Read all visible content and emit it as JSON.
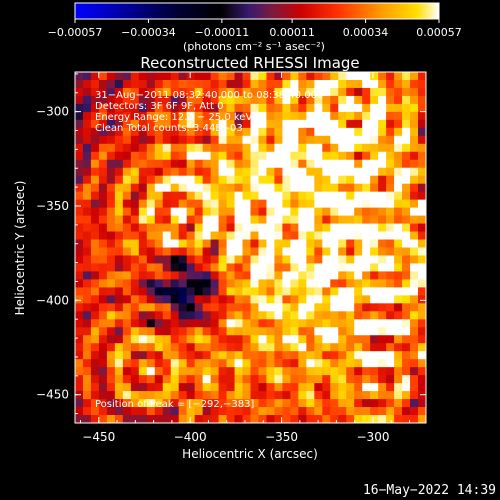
{
  "chart_data": {
    "type": "heatmap",
    "title": "Reconstructed RHESSI Image",
    "xlabel": "Heliocentric X (arcsec)",
    "ylabel": "Heliocentric Y (arcsec)",
    "xlim": [
      -463,
      -271
    ],
    "ylim": [
      -465,
      -279
    ],
    "x_ticks": [
      -450,
      -400,
      -350,
      -300
    ],
    "x_tick_labels": [
      "−450",
      "−400",
      "−350",
      "−300"
    ],
    "y_ticks": [
      -300,
      -350,
      -400,
      -450
    ],
    "y_tick_labels": [
      "−300",
      "−350",
      "−400",
      "−450"
    ],
    "colorbar": {
      "min": -0.00057,
      "max": 0.00057,
      "ticks": [
        -0.00057,
        -0.00034,
        -0.00011,
        0.00011,
        0.00034,
        0.00057
      ],
      "tick_labels": [
        "−0.00057",
        "−0.00034",
        "−0.00011",
        "0.00011",
        "0.00034",
        "0.00057"
      ],
      "unit_label": "(photons cm⁻² s⁻¹ asec⁻²)",
      "colors": [
        "#0000ff",
        "#000044",
        "#000000",
        "#5a2a90",
        "#aa0000",
        "#ff2000",
        "#ff8a00",
        "#ffd400",
        "#ffffff"
      ]
    },
    "annotations": [
      "31−Aug−2011 08:32:40.000 to 08:38:40.000",
      "Detectors: 3F 6F 9F, Att 0",
      "Energy Range: 12.0 − 25.0 keV",
      "Clean      Total counts: 3.44E+03"
    ],
    "peak_label": "Position of Peak = [−292,−383]",
    "peak_position": [
      -292,
      -383
    ],
    "grid": false
  },
  "timestamp": "16−May−2022 14:39"
}
